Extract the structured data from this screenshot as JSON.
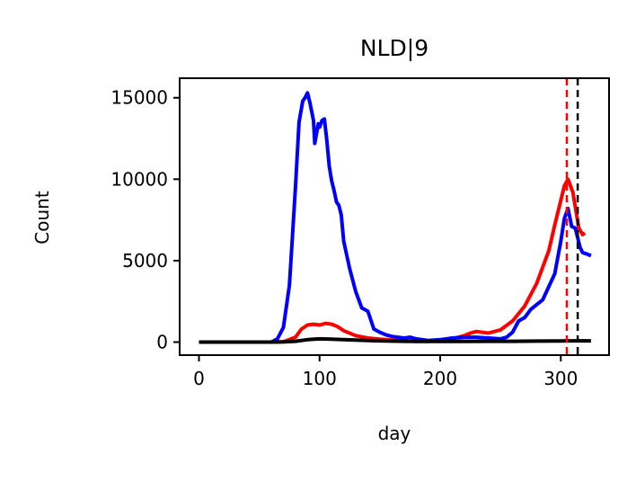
{
  "chart_data": {
    "type": "line",
    "title": "NLD|9",
    "xlabel": "day",
    "ylabel": "Count",
    "xlim": [
      -16,
      340
    ],
    "ylim": [
      -800,
      16200
    ],
    "xticks": [
      0,
      100,
      200,
      300
    ],
    "yticks": [
      0,
      5000,
      10000,
      15000
    ],
    "grid": false,
    "legend": "none",
    "series": [
      {
        "color": "#ff0000",
        "x": [
          0,
          60,
          70,
          80,
          85,
          90,
          95,
          100,
          105,
          110,
          115,
          120,
          130,
          140,
          150,
          160,
          170,
          180,
          190,
          200,
          210,
          220,
          225,
          230,
          240,
          250,
          260,
          270,
          280,
          290,
          295,
          300,
          303,
          306,
          310,
          315,
          318,
          320
        ],
        "values": [
          0,
          0,
          20,
          300,
          800,
          1050,
          1100,
          1050,
          1150,
          1100,
          950,
          700,
          400,
          250,
          180,
          120,
          80,
          50,
          50,
          100,
          200,
          400,
          550,
          650,
          550,
          750,
          1300,
          2200,
          3600,
          5600,
          7200,
          8700,
          9600,
          10000,
          9200,
          7000,
          6600,
          6700
        ]
      },
      {
        "color": "#0000ff",
        "x": [
          0,
          60,
          65,
          70,
          75,
          80,
          83,
          86,
          88,
          90,
          92,
          95,
          96,
          97,
          99,
          100,
          102,
          104,
          106,
          108,
          110,
          112,
          114,
          116,
          118,
          120,
          125,
          130,
          135,
          140,
          145,
          150,
          155,
          160,
          170,
          175,
          180,
          190,
          200,
          210,
          220,
          230,
          240,
          250,
          255,
          260,
          265,
          270,
          275,
          280,
          285,
          290,
          295,
          300,
          303,
          306,
          309,
          312,
          316,
          318,
          320,
          322,
          325
        ],
        "values": [
          0,
          0,
          200,
          900,
          3500,
          9500,
          13500,
          14800,
          15000,
          15300,
          14700,
          13600,
          12200,
          12600,
          13400,
          13200,
          13600,
          13700,
          12400,
          10800,
          9900,
          9300,
          8600,
          8400,
          7800,
          6200,
          4500,
          3100,
          2100,
          1900,
          800,
          600,
          450,
          350,
          250,
          300,
          200,
          100,
          150,
          250,
          300,
          300,
          250,
          200,
          300,
          600,
          1300,
          1500,
          2000,
          2300,
          2600,
          3400,
          4200,
          6200,
          7600,
          8200,
          7100,
          7000,
          5800,
          5500,
          5450,
          5400,
          5300
        ]
      },
      {
        "color": "#000000",
        "x": [
          0,
          60,
          70,
          80,
          90,
          100,
          110,
          120,
          130,
          140,
          150,
          160,
          170,
          180,
          190,
          200,
          220,
          240,
          260,
          280,
          300,
          320,
          325
        ],
        "values": [
          0,
          0,
          10,
          50,
          150,
          200,
          180,
          150,
          120,
          100,
          80,
          60,
          50,
          40,
          40,
          40,
          40,
          50,
          50,
          60,
          70,
          80,
          80
        ]
      }
    ],
    "vlines": [
      {
        "x": 305,
        "color": "#ff0000",
        "style": "dashed"
      },
      {
        "x": 314,
        "color": "#000000",
        "style": "dashed"
      }
    ]
  }
}
